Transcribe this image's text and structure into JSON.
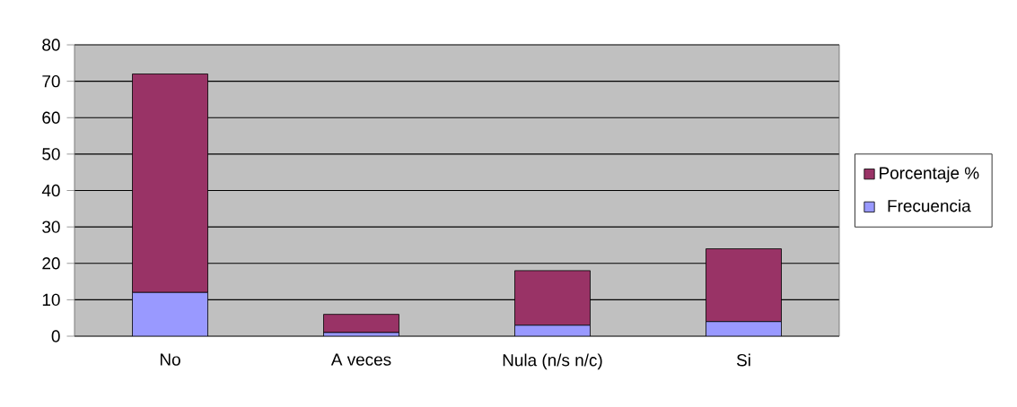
{
  "chart_data": {
    "type": "bar",
    "stacked": true,
    "categories": [
      "No",
      "A veces",
      "Nula (n/s n/c)",
      "Si"
    ],
    "series": [
      {
        "name": "Frecuencia",
        "color": "#9999ff",
        "values": [
          12,
          1,
          3,
          4
        ]
      },
      {
        "name": "Porcentaje %",
        "color": "#993366",
        "values": [
          60,
          5,
          15,
          20
        ]
      }
    ],
    "ylim": [
      0,
      80
    ],
    "yticks": [
      0,
      10,
      20,
      30,
      40,
      50,
      60,
      70,
      80
    ],
    "grid": "y",
    "legend": "right"
  }
}
